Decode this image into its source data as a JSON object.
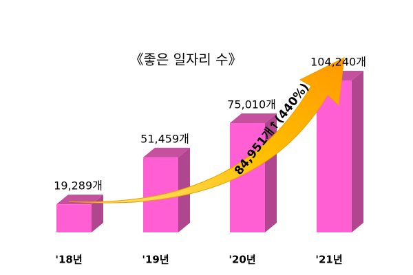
{
  "chart_data": {
    "type": "bar3d",
    "title": "《좋은 일자리 수》",
    "categories": [
      "'18년",
      "'19년",
      "'20년",
      "'21년"
    ],
    "values": [
      19289,
      51459,
      75010,
      104240
    ],
    "value_labels": [
      "19,289개",
      "51,459개",
      "75,010개",
      "104,240개"
    ],
    "color": "#ff5fd2",
    "annotation": "84,951개↑(440%)"
  }
}
